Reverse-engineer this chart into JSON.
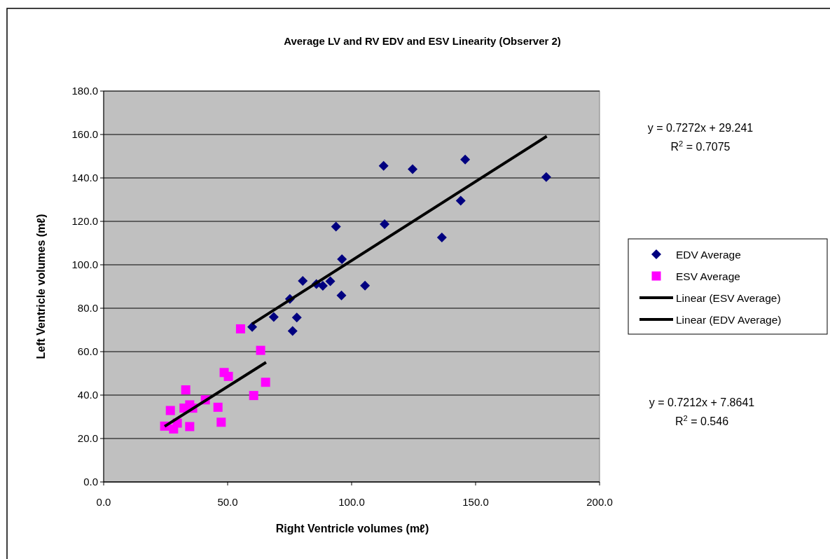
{
  "chart_data": {
    "type": "scatter",
    "title": "Average LV and RV EDV and ESV Linearity (Observer 2)",
    "xlabel": "Right Ventricle volumes (mℓ)",
    "ylabel": "Left Ventricle volumes (mℓ)",
    "xlim": [
      0,
      200
    ],
    "xticks": [
      {
        "value": 0,
        "label": "0.0"
      },
      {
        "value": 50,
        "label": "50.0"
      },
      {
        "value": 100,
        "label": "100.0"
      },
      {
        "value": 150,
        "label": "150.0"
      },
      {
        "value": 200,
        "label": "200.0"
      }
    ],
    "ylim": [
      0,
      180
    ],
    "yticks": [
      {
        "value": 0,
        "label": "0.0"
      },
      {
        "value": 20,
        "label": "20.0"
      },
      {
        "value": 40,
        "label": "40.0"
      },
      {
        "value": 60,
        "label": "60.0"
      },
      {
        "value": 80,
        "label": "80.0"
      },
      {
        "value": 100,
        "label": "100.0"
      },
      {
        "value": 120,
        "label": "120.0"
      },
      {
        "value": 140,
        "label": "140.0"
      },
      {
        "value": 160,
        "label": "160.0"
      },
      {
        "value": 180,
        "label": "180.0"
      }
    ],
    "grid": "y",
    "legend": "right",
    "series": [
      {
        "name": "EDV Average",
        "marker": "diamond",
        "color": "#000080",
        "x": [
          59.9,
          68.6,
          76.2,
          77.9,
          75.1,
          80.3,
          85.8,
          88.4,
          91.4,
          95.9,
          96.1,
          93.7,
          105.4,
          112.9,
          113.3,
          124.6,
          136.4,
          144.0,
          145.8,
          178.5
        ],
        "values": [
          71.4,
          76.0,
          69.5,
          75.7,
          84.3,
          92.6,
          91.1,
          90.3,
          92.4,
          85.9,
          102.6,
          117.6,
          90.4,
          145.6,
          118.7,
          144.0,
          112.6,
          129.5,
          148.5,
          140.4
        ]
      },
      {
        "name": "ESV Average",
        "marker": "square",
        "color": "#ff00ff",
        "x": [
          55.2,
          63.3,
          65.3,
          60.5,
          48.6,
          50.3,
          33.1,
          41.0,
          46.1,
          47.4,
          34.7,
          35.9,
          32.4,
          26.9,
          34.7,
          24.6,
          28.2,
          29.7
        ],
        "values": [
          70.5,
          60.6,
          45.9,
          39.8,
          50.4,
          48.6,
          42.4,
          37.8,
          34.4,
          27.5,
          35.5,
          34.0,
          34.0,
          32.9,
          25.5,
          25.7,
          24.4,
          27.1
        ]
      },
      {
        "name": "Linear (ESV Average)",
        "type": "line",
        "marker": "none",
        "color": "#000000",
        "x": [
          24.6,
          65.5
        ],
        "values": [
          25.6,
          55.1
        ]
      },
      {
        "name": "Linear (EDV Average)",
        "type": "line",
        "marker": "none",
        "color": "#000000",
        "x": [
          59.9,
          178.7
        ],
        "values": [
          72.8,
          159.2
        ]
      }
    ],
    "annotations": [
      "y = 0.7272x + 29.241\nR$^{2}$ = 0.7075",
      "y = 0.7212x + 7.8641\nR$^{2}$ = 0.546"
    ]
  }
}
